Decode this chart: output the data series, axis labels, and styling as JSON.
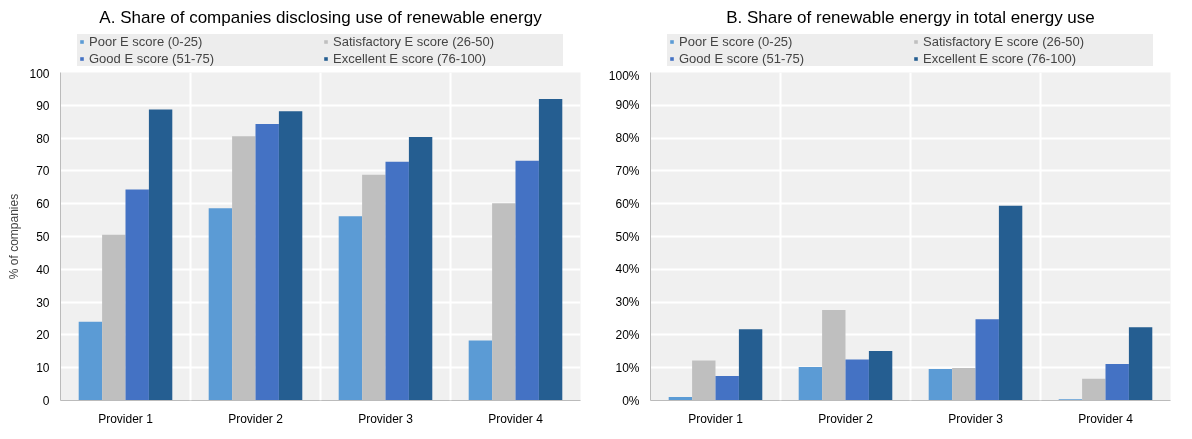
{
  "chart_data": [
    {
      "type": "bar",
      "title": "A. Share of companies disclosing use of renewable energy",
      "ylabel": "% of companies",
      "categories": [
        "Provider 1",
        "Provider 2",
        "Provider 3",
        "Provider 4"
      ],
      "series": [
        {
          "name": "Poor E score (0-25)",
          "color": "#5b9bd5",
          "values": [
            24.0,
            58.6,
            56.2,
            18.3
          ]
        },
        {
          "name": "Satisfactory E score (26-50)",
          "color": "#bfbfbf",
          "values": [
            50.5,
            80.6,
            68.8,
            60.1
          ]
        },
        {
          "name": "Good E score (51-75)",
          "color": "#4472c4",
          "values": [
            64.3,
            84.3,
            72.8,
            73.1
          ]
        },
        {
          "name": "Excellent E score (76-100)",
          "color": "#255e91",
          "values": [
            88.7,
            88.2,
            80.3,
            91.9
          ]
        }
      ],
      "ylim": [
        0,
        100
      ],
      "yticks": [
        0,
        10,
        20,
        30,
        40,
        50,
        60,
        70,
        80,
        90,
        100
      ],
      "grid": true,
      "legend": "top"
    },
    {
      "type": "bar",
      "title": "B. Share of renewable energy in total energy use",
      "categories": [
        "Provider 1",
        "Provider 2",
        "Provider 3",
        "Provider 4"
      ],
      "series": [
        {
          "name": "Poor E score (0-25)",
          "color": "#5b9bd5",
          "values": [
            1.1,
            10.2,
            9.6,
            0.4
          ]
        },
        {
          "name": "Satisfactory E score (26-50)",
          "color": "#bfbfbf",
          "values": [
            12.2,
            27.6,
            9.9,
            6.6
          ]
        },
        {
          "name": "Good E score (51-75)",
          "color": "#4472c4",
          "values": [
            7.5,
            12.5,
            24.8,
            11.1
          ]
        },
        {
          "name": "Excellent E score (76-100)",
          "color": "#255e91",
          "values": [
            21.7,
            15.1,
            59.4,
            22.3
          ]
        }
      ],
      "ylim": [
        0,
        100
      ],
      "yticks": [
        {
          "value": 0,
          "label": "0%"
        },
        {
          "value": 10,
          "label": "10%"
        },
        {
          "value": 20,
          "label": "20%"
        },
        {
          "value": 30,
          "label": "30%"
        },
        {
          "value": 40,
          "label": "40%"
        },
        {
          "value": 50,
          "label": "50%"
        },
        {
          "value": 60,
          "label": "60%"
        },
        {
          "value": 70,
          "label": "70%"
        },
        {
          "value": 80,
          "label": "80%"
        },
        {
          "value": 90,
          "label": "90%"
        },
        {
          "value": 100,
          "label": "100%"
        }
      ],
      "grid": true,
      "legend": "top"
    }
  ]
}
